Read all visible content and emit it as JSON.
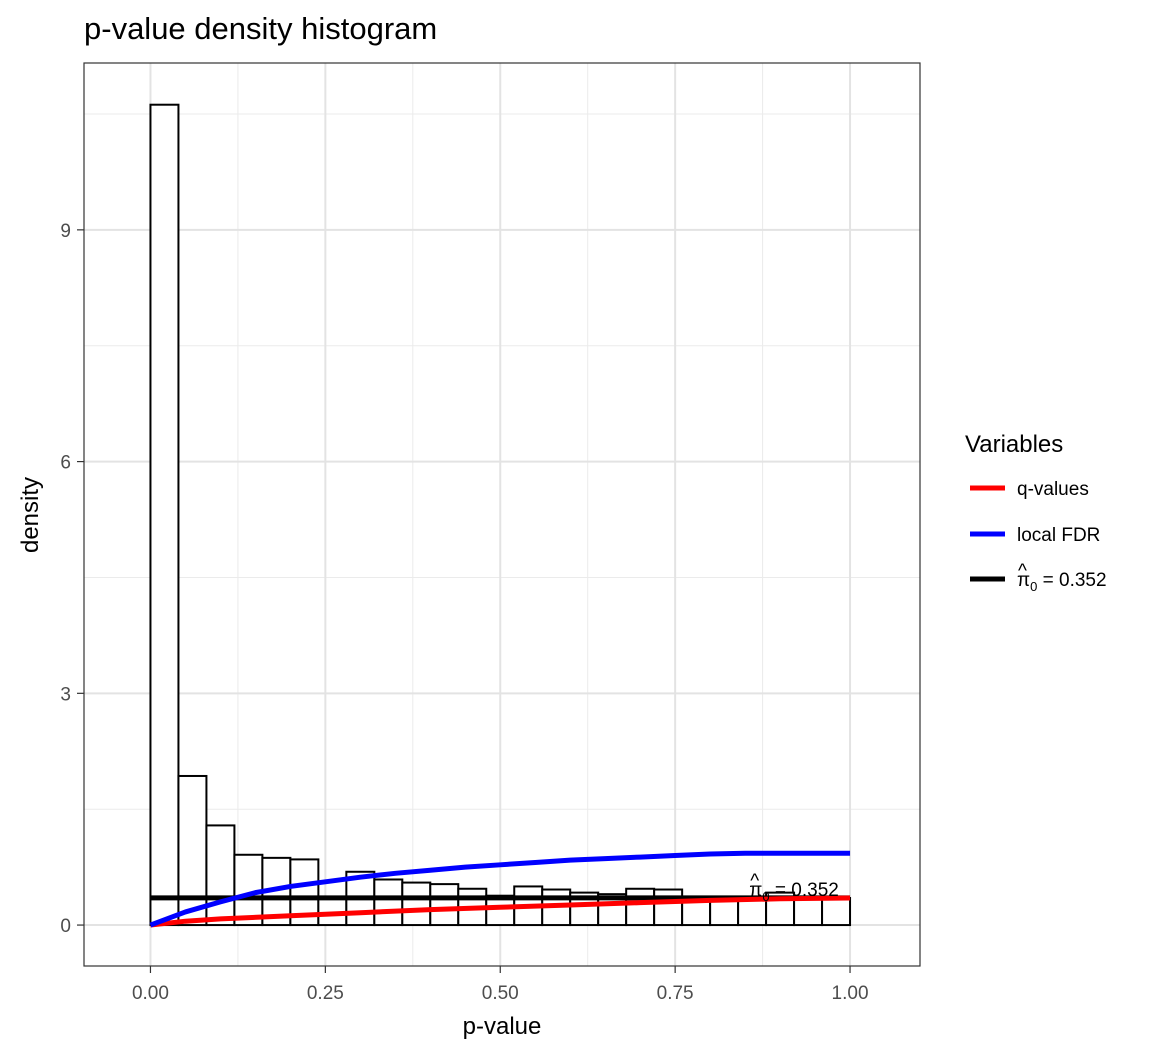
{
  "chart_data": {
    "type": "bar",
    "title": "p-value density histogram",
    "xlabel": "p-value",
    "ylabel": "density",
    "xlim": [
      -0.095,
      1.1
    ],
    "ylim": [
      -0.53,
      11.16
    ],
    "x_ticks": [
      0,
      0.25,
      0.5,
      0.75,
      1
    ],
    "x_tick_labels": [
      "0.00",
      "0.25",
      "0.50",
      "0.75",
      "1.00"
    ],
    "y_ticks": [
      0,
      3,
      6,
      9
    ],
    "y_tick_labels": [
      "0",
      "3",
      "6",
      "9"
    ],
    "grid": true,
    "bin_width": 0.04,
    "bins": [
      {
        "x0": 0.0,
        "x1": 0.04,
        "density": 10.62
      },
      {
        "x0": 0.04,
        "x1": 0.08,
        "density": 1.93
      },
      {
        "x0": 0.08,
        "x1": 0.12,
        "density": 1.29
      },
      {
        "x0": 0.12,
        "x1": 0.16,
        "density": 0.91
      },
      {
        "x0": 0.16,
        "x1": 0.2,
        "density": 0.87
      },
      {
        "x0": 0.2,
        "x1": 0.24,
        "density": 0.85
      },
      {
        "x0": 0.24,
        "x1": 0.28,
        "density": 0.36
      },
      {
        "x0": 0.28,
        "x1": 0.32,
        "density": 0.69
      },
      {
        "x0": 0.32,
        "x1": 0.36,
        "density": 0.59
      },
      {
        "x0": 0.36,
        "x1": 0.4,
        "density": 0.55
      },
      {
        "x0": 0.4,
        "x1": 0.44,
        "density": 0.53
      },
      {
        "x0": 0.44,
        "x1": 0.48,
        "density": 0.47
      },
      {
        "x0": 0.48,
        "x1": 0.52,
        "density": 0.38
      },
      {
        "x0": 0.52,
        "x1": 0.56,
        "density": 0.5
      },
      {
        "x0": 0.56,
        "x1": 0.6,
        "density": 0.46
      },
      {
        "x0": 0.6,
        "x1": 0.64,
        "density": 0.42
      },
      {
        "x0": 0.64,
        "x1": 0.68,
        "density": 0.4
      },
      {
        "x0": 0.68,
        "x1": 0.72,
        "density": 0.47
      },
      {
        "x0": 0.72,
        "x1": 0.76,
        "density": 0.46
      },
      {
        "x0": 0.76,
        "x1": 0.8,
        "density": 0.36
      },
      {
        "x0": 0.8,
        "x1": 0.84,
        "density": 0.35
      },
      {
        "x0": 0.84,
        "x1": 0.88,
        "density": 0.36
      },
      {
        "x0": 0.88,
        "x1": 0.92,
        "density": 0.42
      },
      {
        "x0": 0.92,
        "x1": 0.96,
        "density": 0.35
      },
      {
        "x0": 0.96,
        "x1": 1.0,
        "density": 0.35
      }
    ],
    "series": [
      {
        "name": "q-values",
        "color": "#ff0000",
        "points": [
          [
            0,
            0
          ],
          [
            0.05,
            0.05
          ],
          [
            0.1,
            0.08
          ],
          [
            0.2,
            0.12
          ],
          [
            0.3,
            0.16
          ],
          [
            0.4,
            0.2
          ],
          [
            0.5,
            0.23
          ],
          [
            0.6,
            0.26
          ],
          [
            0.7,
            0.29
          ],
          [
            0.8,
            0.32
          ],
          [
            0.9,
            0.34
          ],
          [
            1.0,
            0.35
          ]
        ]
      },
      {
        "name": "local FDR",
        "color": "#0000ff",
        "points": [
          [
            0,
            0
          ],
          [
            0.05,
            0.17
          ],
          [
            0.1,
            0.3
          ],
          [
            0.15,
            0.42
          ],
          [
            0.2,
            0.5
          ],
          [
            0.25,
            0.56
          ],
          [
            0.3,
            0.62
          ],
          [
            0.35,
            0.67
          ],
          [
            0.4,
            0.71
          ],
          [
            0.45,
            0.75
          ],
          [
            0.5,
            0.78
          ],
          [
            0.55,
            0.81
          ],
          [
            0.6,
            0.84
          ],
          [
            0.65,
            0.86
          ],
          [
            0.7,
            0.88
          ],
          [
            0.75,
            0.9
          ],
          [
            0.8,
            0.92
          ],
          [
            0.85,
            0.93
          ],
          [
            0.9,
            0.93
          ],
          [
            1.0,
            0.93
          ]
        ]
      },
      {
        "name": "π̂0 = 0.352",
        "color": "#000000",
        "points": [
          [
            0,
            0.352
          ],
          [
            1.0,
            0.352
          ]
        ]
      }
    ],
    "legend": {
      "title": "Variables",
      "placement": "right",
      "entries": [
        {
          "label": "q-values",
          "color": "#ff0000"
        },
        {
          "label": "local FDR",
          "color": "#0000ff"
        },
        {
          "label_hat": "^",
          "label_main": "π",
          "label_sub": "0",
          "label_rest": " = 0.352",
          "color": "#000000"
        }
      ]
    },
    "annotation": {
      "label_hat": "^",
      "label_main": "π",
      "label_sub": "0",
      "label_rest": " = 0.352",
      "x": 0.92,
      "y": 0.352
    }
  }
}
